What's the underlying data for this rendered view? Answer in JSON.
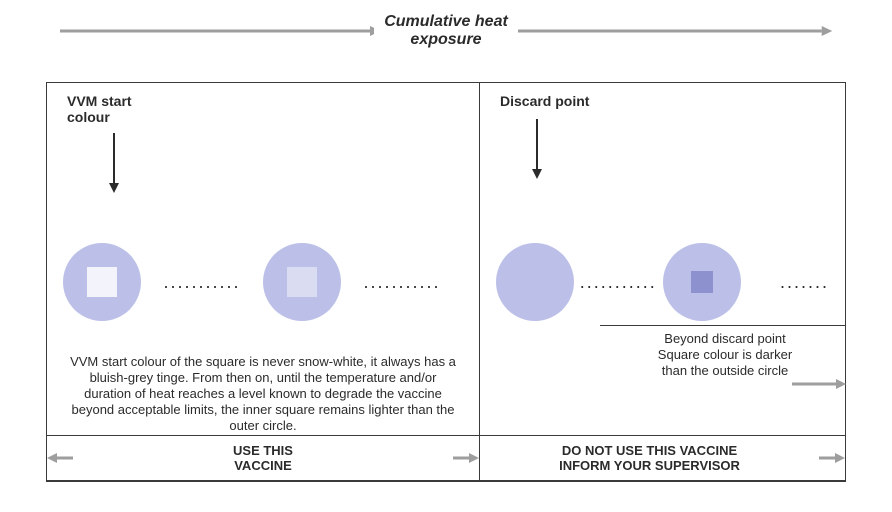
{
  "diagram": {
    "type": "infographic",
    "background_color": "#ffffff",
    "border_color": "#3a3a3a",
    "text_color": "#2b2b2b",
    "arrow_color": "#9e9e9e",
    "title_fontfamily": "Arial",
    "title_fontsize": 16,
    "body_fontsize": 13,
    "label_fontsize": 14
  },
  "top": {
    "title": "Cumulative heat\nexposure"
  },
  "left_panel": {
    "start_label": "VVM start\ncolour",
    "description": "VVM start colour of the square is never snow-white, it always has a bluish-grey  tinge. From then on, until the temperature and/or duration of heat reaches a level known to degrade the vaccine beyond acceptable limits, the inner square remains lighter than the outer circle.",
    "action": "USE THIS\nVACCINE",
    "indicators": [
      {
        "circle_color": "#bcc0e8",
        "square_color": "#f3f4fb",
        "square_visible": true
      },
      {
        "circle_color": "#bcc0e8",
        "square_color": "#dadcf1",
        "square_visible": true
      }
    ],
    "dots": "..........."
  },
  "right_panel": {
    "discard_label": "Discard point",
    "description": "Beyond discard point\nSquare colour is darker\nthan the outside circle",
    "action": "DO NOT USE THIS VACCINE\nINFORM YOUR SUPERVISOR",
    "indicators": [
      {
        "circle_color": "#bcc0e8",
        "square_color": "#bcc0e8",
        "square_visible": false
      },
      {
        "circle_color": "#bcc0e8",
        "square_color": "#8d92cf",
        "square_visible": true
      }
    ],
    "dots": "..........."
  }
}
